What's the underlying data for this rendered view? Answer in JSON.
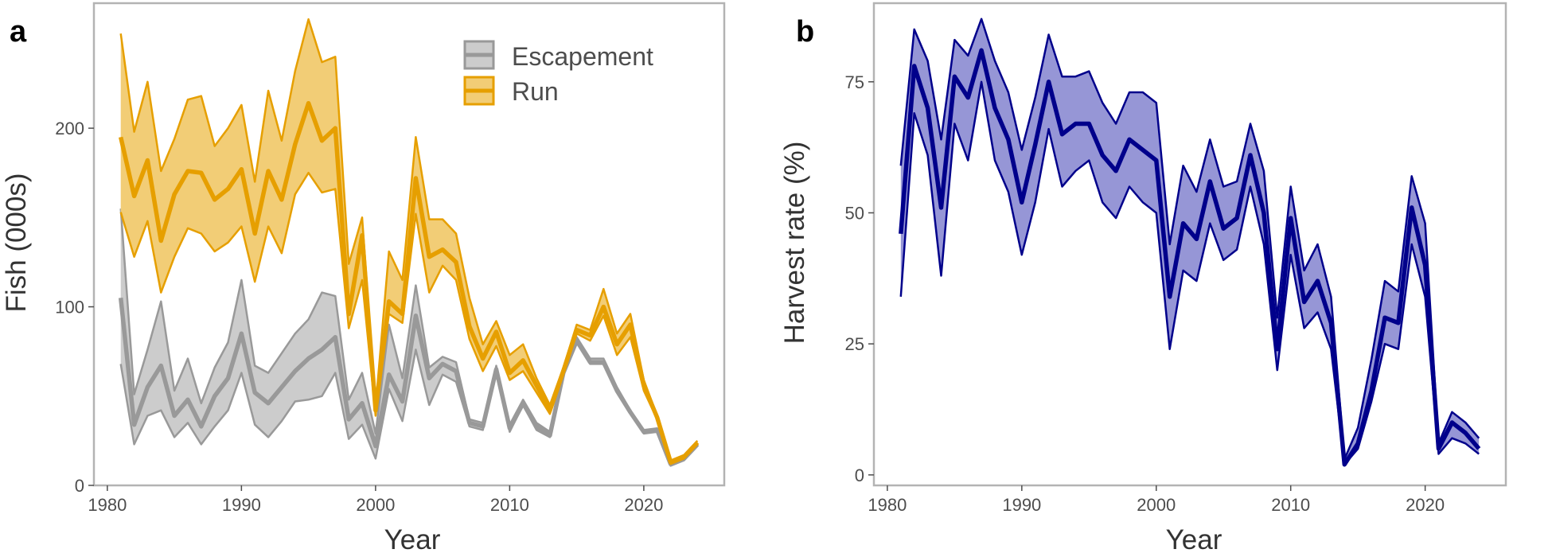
{
  "chart_data": [
    {
      "type": "line",
      "panel_label": "a",
      "xlabel": "Year",
      "ylabel": "Fish (000s)",
      "xlim": [
        1979,
        2026
      ],
      "ylim": [
        0,
        270
      ],
      "xticks": [
        1980,
        1990,
        2000,
        2010,
        2020
      ],
      "yticks": [
        0,
        100,
        200
      ],
      "grid": false,
      "legend_position": "top-right",
      "x": [
        1981,
        1982,
        1983,
        1984,
        1985,
        1986,
        1987,
        1988,
        1989,
        1990,
        1991,
        1992,
        1993,
        1994,
        1995,
        1996,
        1997,
        1998,
        1999,
        2000,
        2001,
        2002,
        2003,
        2004,
        2005,
        2006,
        2007,
        2008,
        2009,
        2010,
        2011,
        2012,
        2013,
        2014,
        2015,
        2016,
        2017,
        2018,
        2019,
        2020,
        2021,
        2022,
        2023,
        2024
      ],
      "series": [
        {
          "name": "Escapement",
          "color": "#999999",
          "fill": "#cccccc",
          "median": [
            105,
            34,
            55,
            67,
            39,
            48,
            33,
            50,
            60,
            85,
            52,
            46,
            55,
            64,
            71,
            76,
            83,
            37,
            46,
            22,
            62,
            47,
            95,
            60,
            68,
            64,
            35,
            33,
            65,
            32,
            46,
            33,
            28,
            63,
            81,
            69,
            69,
            53,
            41,
            30,
            31,
            12,
            15,
            23
          ],
          "lower": [
            68,
            23,
            39,
            42,
            27,
            35,
            23,
            33,
            42,
            63,
            34,
            27,
            36,
            47,
            48,
            50,
            63,
            26,
            34,
            15,
            54,
            36,
            76,
            45,
            62,
            58,
            33,
            31,
            63,
            30,
            45,
            31,
            27,
            62,
            80,
            68,
            68,
            52,
            40,
            29,
            30,
            11,
            14,
            22
          ],
          "upper": [
            155,
            51,
            76,
            103,
            53,
            71,
            46,
            66,
            80,
            115,
            67,
            63,
            74,
            85,
            93,
            108,
            106,
            48,
            63,
            29,
            90,
            60,
            112,
            66,
            72,
            69,
            37,
            35,
            67,
            34,
            48,
            35,
            30,
            65,
            83,
            71,
            71,
            55,
            42,
            31,
            32,
            13,
            16,
            24
          ]
        },
        {
          "name": "Run",
          "color": "#e69f00",
          "fill": "#f2cd76",
          "median": [
            195,
            162,
            182,
            137,
            163,
            176,
            175,
            160,
            166,
            177,
            141,
            176,
            160,
            191,
            214,
            193,
            200,
            96,
            140,
            42,
            103,
            96,
            172,
            128,
            132,
            125,
            89,
            71,
            86,
            63,
            70,
            56,
            42,
            64,
            87,
            84,
            100,
            79,
            90,
            56,
            38,
            13,
            16,
            24
          ],
          "lower": [
            153,
            128,
            148,
            108,
            128,
            144,
            141,
            131,
            136,
            145,
            114,
            145,
            130,
            163,
            175,
            164,
            166,
            88,
            115,
            39,
            96,
            91,
            152,
            108,
            123,
            115,
            82,
            64,
            78,
            59,
            64,
            52,
            40,
            62,
            85,
            81,
            95,
            73,
            83,
            53,
            37,
            12,
            15,
            23
          ],
          "upper": [
            253,
            198,
            226,
            176,
            194,
            216,
            218,
            190,
            200,
            213,
            170,
            221,
            193,
            232,
            261,
            237,
            240,
            124,
            150,
            44,
            131,
            115,
            195,
            149,
            149,
            141,
            105,
            79,
            92,
            73,
            79,
            60,
            45,
            66,
            90,
            87,
            110,
            85,
            96,
            59,
            39,
            14,
            17,
            25
          ]
        }
      ]
    },
    {
      "type": "line",
      "panel_label": "b",
      "xlabel": "Year",
      "ylabel": "Harvest rate (%)",
      "xlim": [
        1979,
        2026
      ],
      "ylim": [
        -2,
        90
      ],
      "xticks": [
        1980,
        1990,
        2000,
        2010,
        2020
      ],
      "yticks": [
        0,
        25,
        50,
        75
      ],
      "grid": false,
      "x": [
        1981,
        1982,
        1983,
        1984,
        1985,
        1986,
        1987,
        1988,
        1989,
        1990,
        1991,
        1992,
        1993,
        1994,
        1995,
        1996,
        1997,
        1998,
        1999,
        2000,
        2001,
        2002,
        2003,
        2004,
        2005,
        2006,
        2007,
        2008,
        2009,
        2010,
        2011,
        2012,
        2013,
        2014,
        2015,
        2016,
        2017,
        2018,
        2019,
        2020,
        2021,
        2022,
        2023,
        2024
      ],
      "series": [
        {
          "name": "",
          "color": "#00008b",
          "fill": "#9696d6",
          "median": [
            46,
            78,
            70,
            51,
            76,
            72,
            81,
            70,
            64,
            52,
            63,
            75,
            65,
            67,
            67,
            61,
            58,
            64,
            62,
            60,
            34,
            48,
            45,
            56,
            47,
            49,
            61,
            50,
            24,
            49,
            33,
            37,
            29,
            2,
            6,
            16,
            30,
            29,
            51,
            40,
            5,
            10,
            8,
            5
          ],
          "lower": [
            34,
            69,
            61,
            38,
            67,
            60,
            75,
            60,
            54,
            42,
            52,
            66,
            55,
            58,
            60,
            52,
            49,
            55,
            52,
            50,
            24,
            39,
            37,
            48,
            41,
            43,
            55,
            44,
            20,
            42,
            28,
            31,
            24,
            2,
            5,
            14,
            25,
            24,
            44,
            34,
            4,
            7,
            6,
            4
          ],
          "upper": [
            59,
            85,
            79,
            64,
            83,
            80,
            87,
            79,
            73,
            62,
            72,
            84,
            76,
            76,
            77,
            71,
            67,
            73,
            73,
            71,
            44,
            59,
            54,
            64,
            55,
            56,
            67,
            58,
            30,
            55,
            39,
            44,
            34,
            3,
            9,
            22,
            37,
            35,
            57,
            48,
            6,
            12,
            10,
            7
          ]
        }
      ]
    }
  ]
}
